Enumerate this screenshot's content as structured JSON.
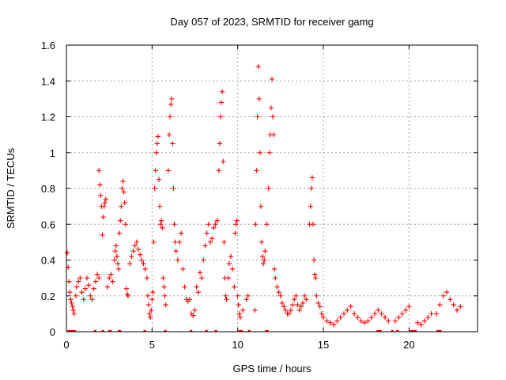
{
  "chart_data": {
    "type": "scatter",
    "title": "Day 057 of 2023, SRMTID for receiver gamg",
    "xlabel": "GPS time / hours",
    "ylabel": "SRMTID / TECUs",
    "xlim": [
      0,
      24
    ],
    "ylim": [
      0,
      1.6
    ],
    "x_ticks": [
      0,
      5,
      10,
      15,
      20
    ],
    "y_ticks": [
      0,
      0.2,
      0.4,
      0.6,
      0.8,
      1,
      1.2,
      1.4,
      1.6
    ],
    "x_tick_labels": [
      "0",
      "5",
      "10",
      "15",
      "20"
    ],
    "y_tick_labels": [
      "0",
      "0.2",
      "0.4",
      "0.6",
      "0.8",
      "1",
      "1.2",
      "1.4",
      "1.6"
    ],
    "grid": true,
    "marker": "plus",
    "color": "#ff0000",
    "series": [
      {
        "name": "SRMTID",
        "points": [
          [
            0.05,
            0.44
          ],
          [
            0.1,
            0.36
          ],
          [
            0.15,
            0.28
          ],
          [
            0.2,
            0.22
          ],
          [
            0.25,
            0.18
          ],
          [
            0.3,
            0.16
          ],
          [
            0.35,
            0.14
          ],
          [
            0.4,
            0.12
          ],
          [
            0.45,
            0.1
          ],
          [
            0.55,
            0.2
          ],
          [
            0.6,
            0.25
          ],
          [
            0.7,
            0.28
          ],
          [
            0.8,
            0.3
          ],
          [
            0.9,
            0.22
          ],
          [
            1.0,
            0.18
          ],
          [
            1.1,
            0.24
          ],
          [
            1.2,
            0.3
          ],
          [
            1.3,
            0.26
          ],
          [
            1.4,
            0.2
          ],
          [
            1.5,
            0.18
          ],
          [
            1.6,
            0.24
          ],
          [
            1.7,
            0.28
          ],
          [
            1.8,
            0.32
          ],
          [
            1.9,
            0.3
          ],
          [
            1.9,
            0.9
          ],
          [
            1.95,
            0.82
          ],
          [
            2.0,
            0.76
          ],
          [
            2.05,
            0.7
          ],
          [
            2.1,
            0.54
          ],
          [
            2.15,
            0.64
          ],
          [
            2.2,
            0.7
          ],
          [
            2.25,
            0.72
          ],
          [
            2.3,
            0.74
          ],
          [
            2.4,
            0.25
          ],
          [
            2.5,
            0.3
          ],
          [
            2.6,
            0.32
          ],
          [
            2.7,
            0.28
          ],
          [
            2.8,
            0.4
          ],
          [
            2.85,
            0.45
          ],
          [
            2.9,
            0.48
          ],
          [
            2.95,
            0.42
          ],
          [
            3.0,
            0.38
          ],
          [
            3.05,
            0.35
          ],
          [
            3.1,
            0.55
          ],
          [
            3.15,
            0.62
          ],
          [
            3.2,
            0.7
          ],
          [
            3.25,
            0.8
          ],
          [
            3.3,
            0.84
          ],
          [
            3.35,
            0.78
          ],
          [
            3.4,
            0.72
          ],
          [
            3.45,
            0.6
          ],
          [
            3.5,
            0.24
          ],
          [
            3.55,
            0.21
          ],
          [
            3.6,
            0.2
          ],
          [
            3.7,
            0.38
          ],
          [
            3.8,
            0.42
          ],
          [
            3.9,
            0.45
          ],
          [
            4.0,
            0.48
          ],
          [
            4.1,
            0.5
          ],
          [
            4.2,
            0.46
          ],
          [
            4.3,
            0.43
          ],
          [
            4.4,
            0.4
          ],
          [
            4.5,
            0.38
          ],
          [
            4.6,
            0.35
          ],
          [
            4.7,
            0.3
          ],
          [
            4.75,
            0.2
          ],
          [
            4.8,
            0.15
          ],
          [
            4.85,
            0.1
          ],
          [
            4.9,
            0.08
          ],
          [
            4.95,
            0.12
          ],
          [
            5.0,
            0.18
          ],
          [
            5.05,
            0.22
          ],
          [
            5.1,
            0.5
          ],
          [
            5.15,
            0.8
          ],
          [
            5.2,
            0.9
          ],
          [
            5.25,
            1.0
          ],
          [
            5.3,
            1.05
          ],
          [
            5.35,
            1.09
          ],
          [
            5.4,
            0.85
          ],
          [
            5.45,
            0.7
          ],
          [
            5.5,
            0.6
          ],
          [
            5.55,
            0.62
          ],
          [
            5.6,
            0.58
          ],
          [
            5.65,
            0.3
          ],
          [
            5.7,
            0.25
          ],
          [
            5.75,
            0.2
          ],
          [
            5.8,
            0.15
          ],
          [
            5.95,
            0.9
          ],
          [
            6.0,
            1.1
          ],
          [
            6.05,
            1.2
          ],
          [
            6.1,
            1.27
          ],
          [
            6.15,
            1.3
          ],
          [
            6.2,
            1.05
          ],
          [
            6.25,
            0.8
          ],
          [
            6.3,
            0.6
          ],
          [
            6.35,
            0.5
          ],
          [
            6.4,
            0.45
          ],
          [
            6.5,
            0.4
          ],
          [
            6.6,
            0.5
          ],
          [
            6.7,
            0.55
          ],
          [
            6.8,
            0.35
          ],
          [
            6.9,
            0.25
          ],
          [
            7.0,
            0.18
          ],
          [
            7.1,
            0.17
          ],
          [
            7.2,
            0.18
          ],
          [
            7.3,
            0.1
          ],
          [
            7.4,
            0.09
          ],
          [
            7.5,
            0.12
          ],
          [
            7.6,
            0.25
          ],
          [
            7.7,
            0.22
          ],
          [
            7.8,
            0.33
          ],
          [
            7.9,
            0.3
          ],
          [
            8.0,
            0.4
          ],
          [
            8.1,
            0.48
          ],
          [
            8.2,
            0.55
          ],
          [
            8.3,
            0.6
          ],
          [
            8.4,
            0.5
          ],
          [
            8.5,
            0.52
          ],
          [
            8.6,
            0.58
          ],
          [
            8.7,
            0.6
          ],
          [
            8.8,
            0.62
          ],
          [
            8.9,
            0.9
          ],
          [
            8.95,
            1.05
          ],
          [
            9.0,
            1.2
          ],
          [
            9.05,
            1.28
          ],
          [
            9.1,
            1.34
          ],
          [
            9.15,
            0.95
          ],
          [
            9.2,
            0.5
          ],
          [
            9.25,
            0.3
          ],
          [
            9.3,
            0.2
          ],
          [
            9.35,
            0.18
          ],
          [
            9.45,
            0.3
          ],
          [
            9.5,
            0.38
          ],
          [
            9.6,
            0.42
          ],
          [
            9.7,
            0.35
          ],
          [
            9.8,
            0.25
          ],
          [
            9.85,
            0.55
          ],
          [
            9.9,
            0.6
          ],
          [
            9.95,
            0.62
          ],
          [
            10.0,
            0.2
          ],
          [
            10.05,
            0.15
          ],
          [
            10.1,
            0.1
          ],
          [
            10.15,
            0.08
          ],
          [
            10.3,
            0.12
          ],
          [
            10.5,
            0.18
          ],
          [
            10.6,
            0.2
          ],
          [
            11.0,
            0.12
          ],
          [
            11.05,
            0.6
          ],
          [
            11.1,
            0.9
          ],
          [
            11.15,
            1.2
          ],
          [
            11.2,
            1.48
          ],
          [
            11.25,
            1.3
          ],
          [
            11.3,
            1.0
          ],
          [
            11.35,
            0.7
          ],
          [
            11.4,
            0.5
          ],
          [
            11.45,
            0.42
          ],
          [
            11.5,
            0.38
          ],
          [
            11.55,
            0.4
          ],
          [
            11.6,
            0.45
          ],
          [
            11.7,
            0.6
          ],
          [
            11.8,
            0.8
          ],
          [
            11.85,
            1.0
          ],
          [
            11.9,
            1.1
          ],
          [
            11.95,
            1.25
          ],
          [
            12.0,
            1.41
          ],
          [
            12.05,
            1.2
          ],
          [
            12.1,
            1.1
          ],
          [
            12.15,
            0.35
          ],
          [
            12.2,
            0.3
          ],
          [
            12.3,
            0.25
          ],
          [
            12.4,
            0.22
          ],
          [
            12.5,
            0.2
          ],
          [
            12.6,
            0.16
          ],
          [
            12.7,
            0.14
          ],
          [
            12.8,
            0.12
          ],
          [
            12.9,
            0.1
          ],
          [
            13.0,
            0.1
          ],
          [
            13.1,
            0.12
          ],
          [
            13.2,
            0.15
          ],
          [
            13.3,
            0.18
          ],
          [
            13.4,
            0.2
          ],
          [
            13.5,
            0.15
          ],
          [
            13.6,
            0.12
          ],
          [
            13.7,
            0.14
          ],
          [
            13.8,
            0.16
          ],
          [
            13.9,
            0.2
          ],
          [
            14.0,
            0.18
          ],
          [
            14.2,
            0.6
          ],
          [
            14.25,
            0.7
          ],
          [
            14.3,
            0.8
          ],
          [
            14.35,
            0.86
          ],
          [
            14.4,
            0.6
          ],
          [
            14.45,
            0.4
          ],
          [
            14.5,
            0.32
          ],
          [
            14.55,
            0.3
          ],
          [
            14.6,
            0.2
          ],
          [
            14.7,
            0.16
          ],
          [
            14.8,
            0.14
          ],
          [
            14.9,
            0.1
          ],
          [
            15.0,
            0.08
          ],
          [
            15.2,
            0.06
          ],
          [
            15.4,
            0.05
          ],
          [
            15.6,
            0.04
          ],
          [
            15.8,
            0.06
          ],
          [
            16.0,
            0.08
          ],
          [
            16.2,
            0.1
          ],
          [
            16.4,
            0.12
          ],
          [
            16.6,
            0.14
          ],
          [
            16.8,
            0.1
          ],
          [
            17.0,
            0.08
          ],
          [
            17.2,
            0.06
          ],
          [
            17.4,
            0.05
          ],
          [
            17.6,
            0.06
          ],
          [
            17.8,
            0.08
          ],
          [
            18.0,
            0.1
          ],
          [
            18.2,
            0.12
          ],
          [
            18.4,
            0.1
          ],
          [
            18.6,
            0.08
          ],
          [
            18.8,
            0.06
          ],
          [
            19.2,
            0.06
          ],
          [
            19.4,
            0.08
          ],
          [
            19.6,
            0.1
          ],
          [
            19.8,
            0.12
          ],
          [
            20.0,
            0.14
          ],
          [
            20.5,
            0.05
          ],
          [
            20.7,
            0.04
          ],
          [
            20.9,
            0.06
          ],
          [
            21.1,
            0.08
          ],
          [
            21.3,
            0.1
          ],
          [
            21.6,
            0.1
          ],
          [
            21.8,
            0.15
          ],
          [
            22.0,
            0.2
          ],
          [
            22.2,
            0.22
          ],
          [
            22.4,
            0.18
          ],
          [
            22.6,
            0.15
          ],
          [
            22.8,
            0.12
          ],
          [
            23.0,
            0.14
          ]
        ]
      }
    ],
    "zero_intervals": [
      [
        0.05,
        0.55
      ],
      [
        1.6,
        1.75
      ],
      [
        2.05,
        2.2
      ],
      [
        2.45,
        2.65
      ],
      [
        3.0,
        3.2
      ],
      [
        4.5,
        4.65
      ],
      [
        5.7,
        5.85
      ],
      [
        7.2,
        7.35
      ],
      [
        8.1,
        8.25
      ],
      [
        8.65,
        8.8
      ],
      [
        10.05,
        10.3
      ],
      [
        10.6,
        10.75
      ],
      [
        11.6,
        11.8
      ],
      [
        18.1,
        18.4
      ],
      [
        18.95,
        19.1
      ],
      [
        19.25,
        19.4
      ],
      [
        20.05,
        20.45
      ],
      [
        21.6,
        21.9
      ]
    ]
  }
}
